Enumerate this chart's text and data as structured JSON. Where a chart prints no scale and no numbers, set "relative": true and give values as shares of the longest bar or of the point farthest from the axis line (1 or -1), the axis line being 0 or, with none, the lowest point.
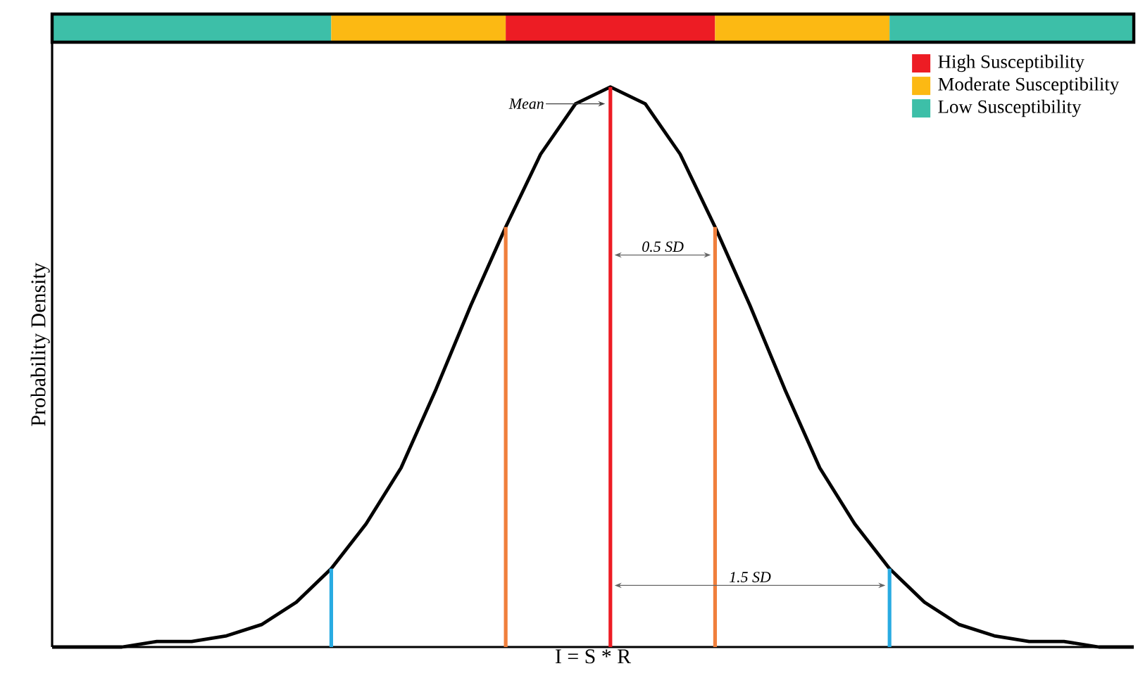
{
  "chart_data": {
    "type": "line",
    "xlabel": "I = S * R",
    "ylabel": "Probability Density",
    "relative": true,
    "categories": [
      null,
      null,
      null,
      null,
      null,
      null,
      null,
      null,
      null,
      null,
      null,
      null,
      null,
      null,
      null,
      null,
      null,
      null,
      null,
      null,
      null,
      null,
      null,
      null,
      null,
      null,
      null,
      null,
      null,
      null,
      null,
      null
    ],
    "series": [
      {
        "color": "#000000",
        "values": [
          0,
          0,
          0,
          0.01,
          0.01,
          0.02,
          0.04,
          0.08,
          0.14,
          0.22,
          0.32,
          0.46,
          0.61,
          0.75,
          0.88,
          0.97,
          1,
          0.97,
          0.88,
          0.75,
          0.61,
          0.46,
          0.32,
          0.22,
          0.14,
          0.08,
          0.04,
          0.02,
          0.01,
          0.01,
          0,
          0
        ]
      }
    ],
    "annotations": [
      "Mean",
      "0.5 SD",
      "1.5 SD",
      "High Susceptibility",
      "Moderate Susceptibility",
      "Low Susceptibility"
    ]
  }
}
